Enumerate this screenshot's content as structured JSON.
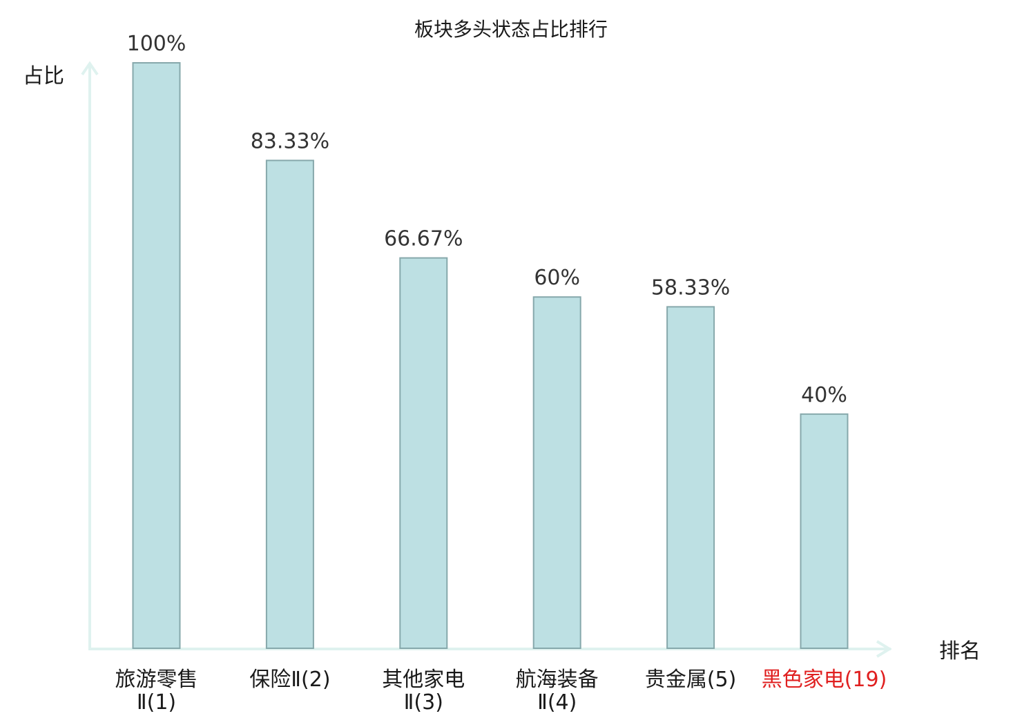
{
  "chart_data": {
    "type": "bar",
    "title": "板块多头状态占比排行",
    "ylabel": "占比",
    "xlabel": "排名",
    "ylim": [
      0,
      100
    ],
    "grid": false,
    "categories": [
      [
        "旅游零售",
        "Ⅱ(1)"
      ],
      [
        "保险Ⅱ(2)"
      ],
      [
        "其他家电",
        "Ⅱ(3)"
      ],
      [
        "航海装备",
        "Ⅱ(4)"
      ],
      [
        "贵金属(5)"
      ],
      [
        "黑色家电(19)"
      ]
    ],
    "values": [
      100,
      83.33,
      66.67,
      60,
      58.33,
      40
    ],
    "value_labels": [
      "100%",
      "83.33%",
      "66.67%",
      "60%",
      "58.33%",
      "40%"
    ],
    "highlight_index": 5
  },
  "colors": {
    "bar_fill": "#bde0e3",
    "bar_stroke": "#86a8ab",
    "axis": "#dff2ef",
    "highlight_text": "#e02020"
  }
}
